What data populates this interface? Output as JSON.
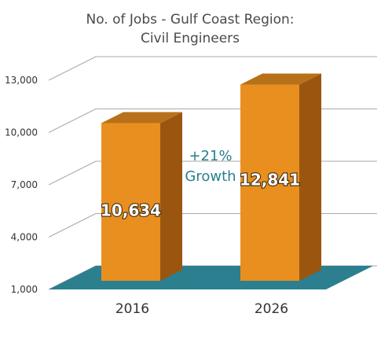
{
  "chart_data": {
    "type": "bar",
    "title": "No. of Jobs - Gulf Coast Region:",
    "subtitle": "Civil Engineers",
    "categories": [
      "2016",
      "2026"
    ],
    "values": [
      10634,
      12841
    ],
    "value_labels": [
      "10,634",
      "12,841"
    ],
    "y_ticks": [
      "1,000",
      "4,000",
      "7,000",
      "10,000",
      "13,000"
    ],
    "ylim": [
      1000,
      13000
    ],
    "annotation": {
      "line1": "+21%",
      "line2": "Growth"
    },
    "grid": true,
    "colors": {
      "bar_front": "#e98f1f",
      "bar_side": "#9a560f",
      "bar_top": "#b8711a",
      "floor": "#2b7f8e",
      "grid": "#aaaaaa"
    }
  }
}
